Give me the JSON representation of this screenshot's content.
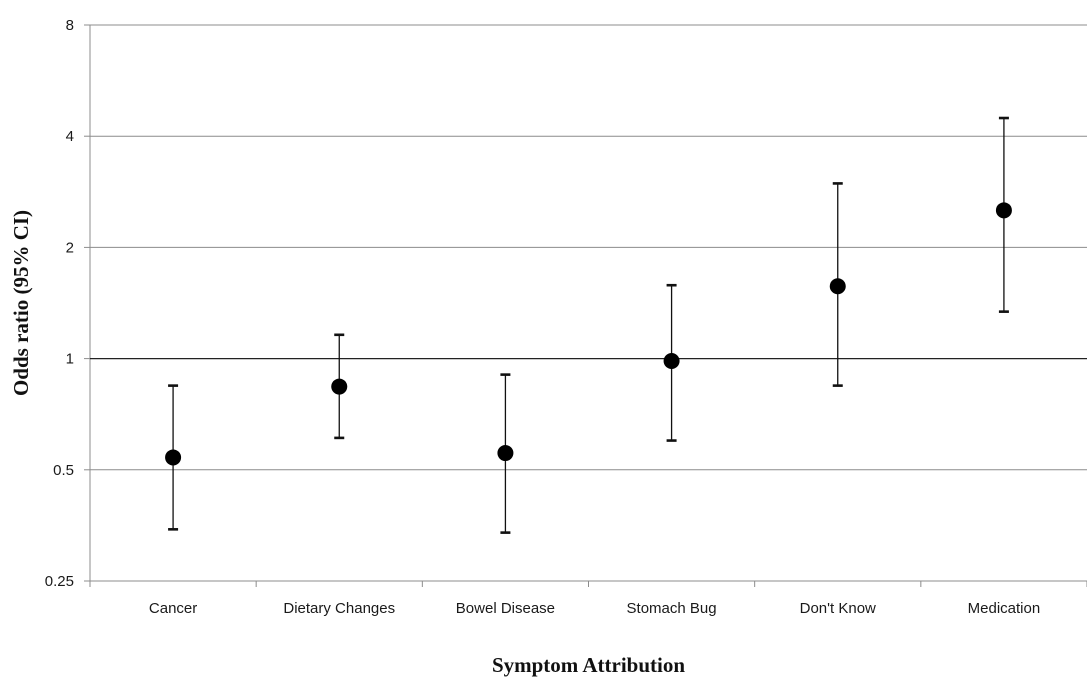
{
  "chart_data": {
    "type": "scatter",
    "y_scale": "log2",
    "ylim": [
      0.25,
      8
    ],
    "yticks": [
      0.25,
      0.5,
      1,
      2,
      4,
      8
    ],
    "ytick_labels": [
      "0.25",
      "0.5",
      "1",
      "2",
      "4",
      "8"
    ],
    "reference_line": 1,
    "grid": true,
    "xlabel": "Symptom Attribution",
    "ylabel": "Odds ratio (95% CI)",
    "categories": [
      "Cancer",
      "Dietary Changes",
      "Bowel Disease",
      "Stomach Bug",
      "Don't Know",
      "Medication"
    ],
    "series": [
      {
        "values": [
          0.54,
          0.84,
          0.555,
          0.985,
          1.57,
          2.52
        ],
        "ci_lower": [
          0.345,
          0.61,
          0.338,
          0.6,
          0.845,
          1.34
        ],
        "ci_upper": [
          0.845,
          1.16,
          0.905,
          1.58,
          2.98,
          4.48
        ]
      }
    ],
    "colors": {
      "marker": "#000000",
      "gridline": "#8c8c8c",
      "reference_line": "#222222"
    }
  }
}
